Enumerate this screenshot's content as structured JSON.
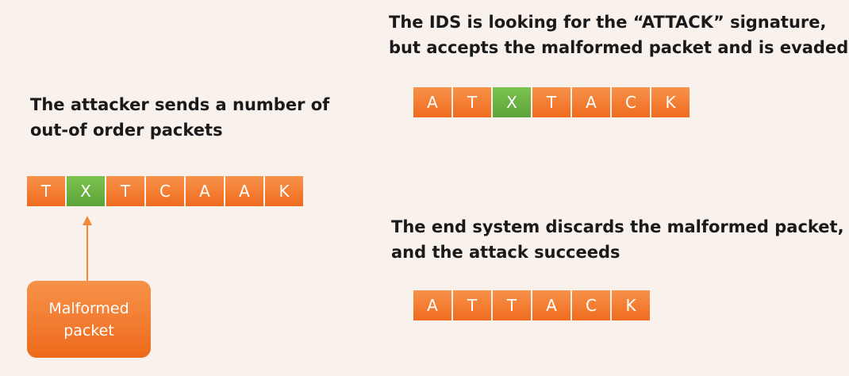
{
  "colors": {
    "background": "#f9f1ec",
    "packet": "#f2781f",
    "malformed_packet": "#6ab344",
    "arrow": "#f0873a"
  },
  "attacker": {
    "caption_lines": [
      "The attacker sends a number of",
      "out-of order packets"
    ],
    "packets": [
      {
        "letter": "T",
        "malformed": false
      },
      {
        "letter": "X",
        "malformed": true
      },
      {
        "letter": "T",
        "malformed": false
      },
      {
        "letter": "C",
        "malformed": false
      },
      {
        "letter": "A",
        "malformed": false
      },
      {
        "letter": "A",
        "malformed": false
      },
      {
        "letter": "K",
        "malformed": false
      }
    ],
    "callout_lines": [
      "Malformed",
      "packet"
    ]
  },
  "ids": {
    "caption_lines": [
      "The IDS is looking for the “ATTACK” signature,",
      "but accepts the malformed packet and is evaded"
    ],
    "packets": [
      {
        "letter": "A",
        "malformed": false
      },
      {
        "letter": "T",
        "malformed": false
      },
      {
        "letter": "X",
        "malformed": true
      },
      {
        "letter": "T",
        "malformed": false
      },
      {
        "letter": "A",
        "malformed": false
      },
      {
        "letter": "C",
        "malformed": false
      },
      {
        "letter": "K",
        "malformed": false
      }
    ]
  },
  "end_system": {
    "caption_lines": [
      "The end system discards the malformed packet,",
      "and the attack succeeds"
    ],
    "packets": [
      {
        "letter": "A",
        "malformed": false
      },
      {
        "letter": "T",
        "malformed": false
      },
      {
        "letter": "T",
        "malformed": false
      },
      {
        "letter": "A",
        "malformed": false
      },
      {
        "letter": "C",
        "malformed": false
      },
      {
        "letter": "K",
        "malformed": false
      }
    ]
  }
}
